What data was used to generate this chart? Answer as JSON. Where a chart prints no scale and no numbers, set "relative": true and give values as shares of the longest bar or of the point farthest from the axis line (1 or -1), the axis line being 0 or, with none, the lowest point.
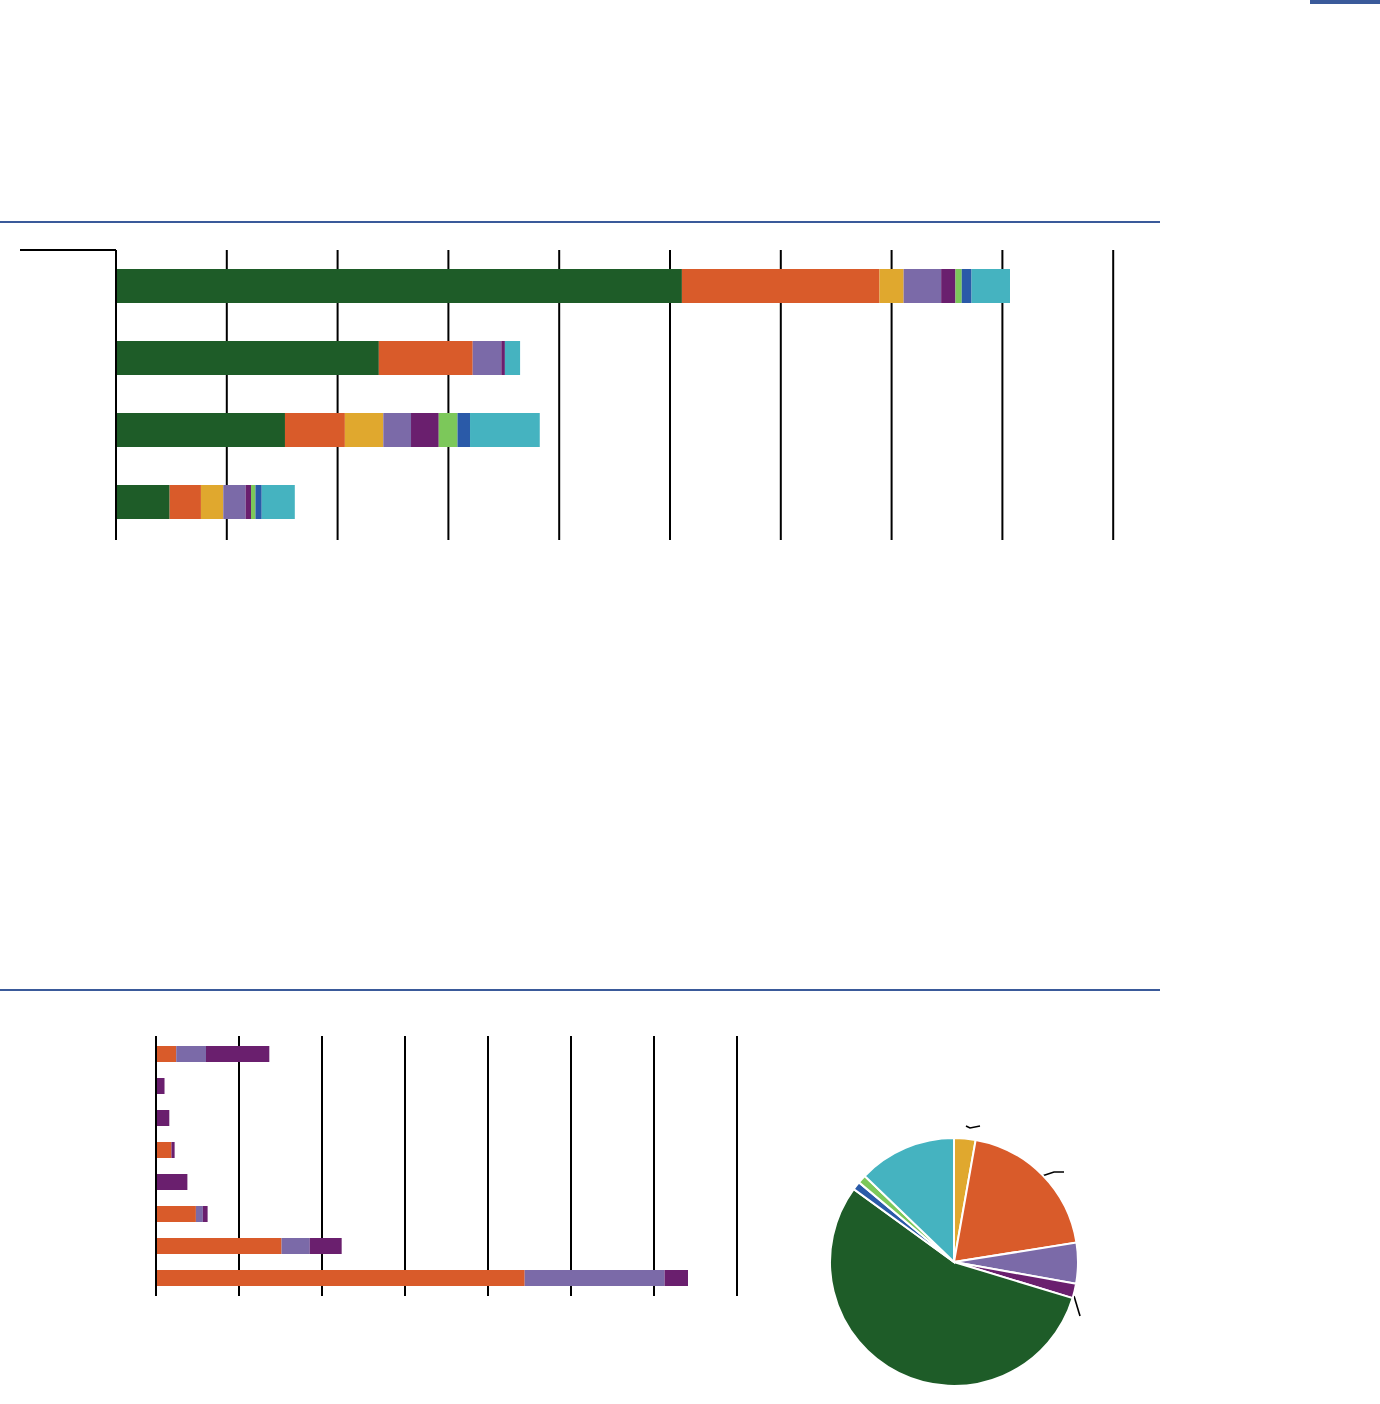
{
  "chart_data": [
    {
      "type": "bar",
      "orientation": "horizontal",
      "stacked": true,
      "relative": true,
      "grid": "x",
      "categories": [
        null,
        null,
        null,
        null
      ],
      "series": [
        {
          "color": "#1e5c28",
          "values": [
            0.633,
            0.294,
            0.189,
            0.06
          ]
        },
        {
          "color": "#d95b2a",
          "values": [
            0.221,
            0.105,
            0.067,
            0.035
          ]
        },
        {
          "color": "#e0a82e",
          "values": [
            0.027,
            null,
            0.043,
            0.025
          ]
        },
        {
          "color": "#7b6aa8",
          "values": [
            0.042,
            0.032,
            0.031,
            0.025
          ]
        },
        {
          "color": "#6a1f6e",
          "values": [
            0.016,
            0.004,
            0.031,
            0.006
          ]
        },
        {
          "color": "#7cc85a",
          "values": [
            0.007,
            null,
            0.021,
            0.005
          ]
        },
        {
          "color": "#2a5aa8",
          "values": [
            0.011,
            null,
            0.014,
            0.007
          ]
        },
        {
          "color": "#45b3c0",
          "values": [
            0.043,
            0.017,
            0.078,
            0.037
          ]
        }
      ]
    },
    {
      "type": "bar",
      "orientation": "horizontal",
      "stacked": true,
      "relative": true,
      "grid": "x",
      "categories": [
        null,
        null,
        null,
        null,
        null,
        null,
        null,
        null
      ],
      "series": [
        {
          "color": "#d95b2a",
          "values": [
            0.038,
            null,
            null,
            0.029,
            null,
            0.075,
            0.236,
            0.693
          ]
        },
        {
          "color": "#7b6aa8",
          "values": [
            0.056,
            null,
            null,
            null,
            null,
            0.013,
            0.053,
            0.263
          ]
        },
        {
          "color": "#6a1f6e",
          "values": [
            0.119,
            0.016,
            0.025,
            0.006,
            0.059,
            0.009,
            0.06,
            0.044
          ]
        }
      ]
    },
    {
      "type": "pie",
      "categories": [
        null,
        null,
        null,
        null,
        null,
        null,
        null,
        null
      ],
      "values": [
        2.8,
        19.7,
        5.3,
        1.9,
        55.3,
        1.1,
        1.1,
        12.8
      ],
      "colors": [
        "#e0a82e",
        "#d95b2a",
        "#7b6aa8",
        "#6a1f6e",
        "#1e5c28",
        "#2a5aa8",
        "#7cc85a",
        "#45b3c0"
      ]
    }
  ]
}
